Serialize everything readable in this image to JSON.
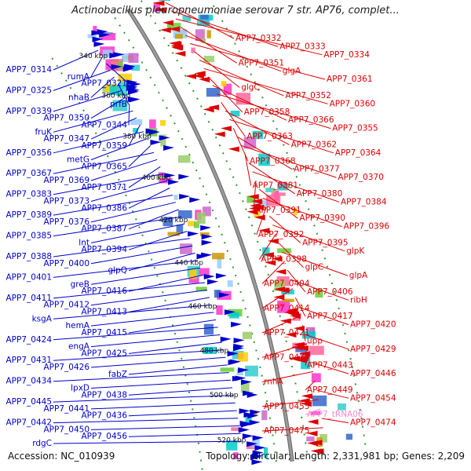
{
  "title": "Actinobacillus pleuropneumoniae serovar 7 str. AP76, complet...",
  "footer": {
    "accession": "Accession: NC_010939",
    "summary": "Topology: circular; Length: 2,331,981 bp; Genes: 2,209"
  },
  "colors": {
    "left_strand": "#0000cc",
    "right_strand": "#dd0000",
    "trna": "#ff88cc",
    "backbone": "#9a9a9a",
    "ticks": "#339933"
  },
  "ticks": [
    "340 kbp",
    "360 kbp",
    "380 kbp",
    "400 kbp",
    "420 kbp",
    "440 kbp",
    "460 kbp",
    "480 kbp",
    "500 kbp",
    "520 kbp"
  ],
  "left_labels": [
    "APP7_0314",
    "rumA",
    "APP7_0321",
    "APP7_0325",
    "nhaB",
    "prfB",
    "APP7_0339",
    "APP7_0350",
    "APP7_0344",
    "fruK",
    "APP7_0347",
    "APP7_0359",
    "APP7_0356",
    "metG",
    "APP7_0365",
    "APP7_0367",
    "APP7_0369",
    "APP7_0371",
    "APP7_0383",
    "APP7_0373",
    "APP7_0386",
    "APP7_0389",
    "APP7_0376",
    "APP7_0387",
    "APP7_0385",
    "lnt",
    "APP7_0394",
    "APP7_0388",
    "APP7_0400",
    "glpQ",
    "APP7_0401",
    "greB",
    "APP7_0416",
    "APP7_0411",
    "APP7_0412",
    "APP7_0413",
    "ksgA",
    "hemA",
    "APP7_0415",
    "APP7_0424",
    "engA",
    "APP7_0425",
    "APP7_0431",
    "APP7_0426",
    "fabZ",
    "APP7_0434",
    "lpxD",
    "APP7_0438",
    "APP7_0445",
    "APP7_0441",
    "APP7_0436",
    "APP7_0442",
    "APP7_0450",
    "APP7_0456",
    "rdgC"
  ],
  "right_labels": [
    "APP7_0332",
    "APP7_0333",
    "APP7_0334",
    "APP7_0351",
    "glgA",
    "APP7_0361",
    "glgC",
    "APP7_0352",
    "APP7_0360",
    "APP7_0358",
    "APP7_0366",
    "APP7_0355",
    "APP7_0363",
    "APP7_0362",
    "APP7_0364",
    "APP7_0368",
    "APP7_0377",
    "APP7_0370",
    "APP7_0381",
    "APP7_0380",
    "APP7_0384",
    "APP7_0391",
    "APP7_0390",
    "APP7_0396",
    "APP7_0392",
    "APP7_0395",
    "glpK",
    "APP7_0398",
    "glpC",
    "glpA",
    "APP7_0404",
    "APP7_0406",
    "ribH",
    "APP7_0414",
    "APP7_0417",
    "APP7_0420",
    "APP7_0421",
    "upp",
    "APP7_0429",
    "APP7_0430",
    "APP7_0443",
    "APP7_0446",
    "rnhA",
    "APP7_0449",
    "APP7_0454",
    "APP7_0455",
    "APP7_tRNA06",
    "APP7_0474",
    "APP7_0475"
  ]
}
